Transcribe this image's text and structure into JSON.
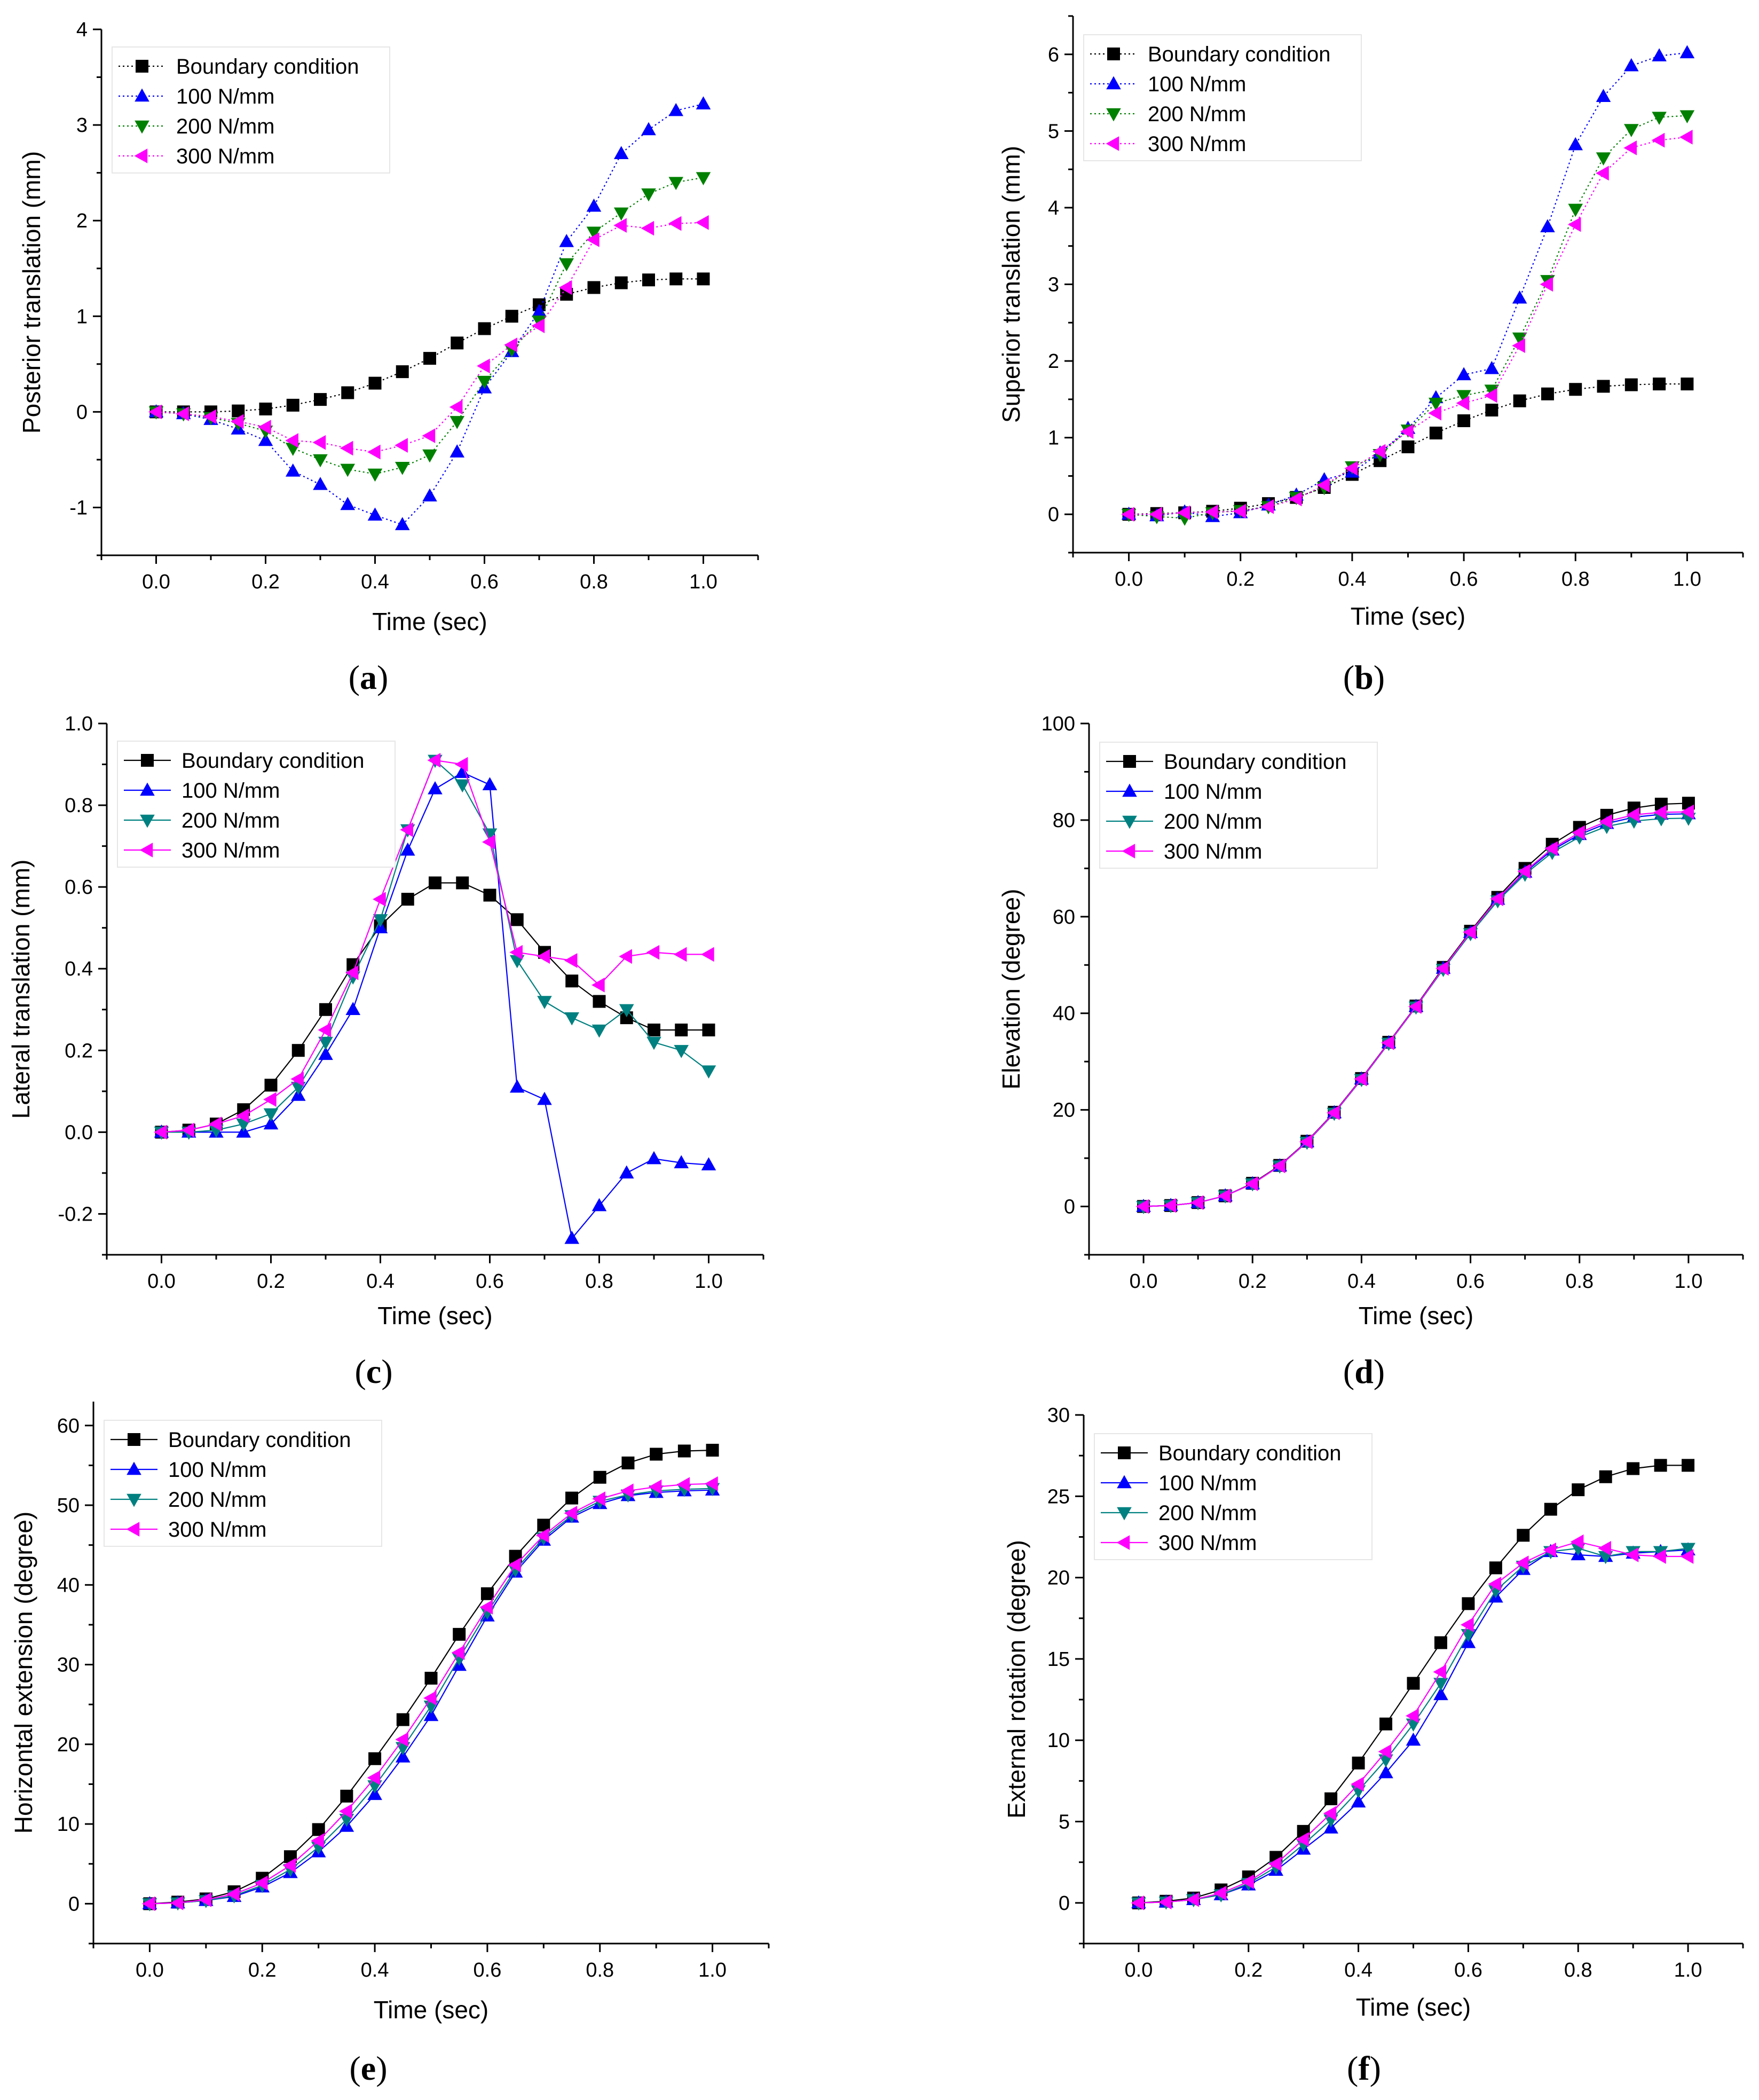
{
  "chart_data": [
    {
      "type": "line",
      "panel_label": "a",
      "xlabel": "Time (sec)",
      "ylabel": "Posterior translation (mm)",
      "xlim": [
        -0.1,
        1.1
      ],
      "ylim": [
        -1.5,
        4
      ],
      "xticks": [
        0.0,
        0.2,
        0.4,
        0.6,
        0.8,
        1.0
      ],
      "xtick_labels": [
        "0.0",
        "0.2",
        "0.4",
        "0.6",
        "0.8",
        "1.0"
      ],
      "yticks": [
        -1,
        0,
        1,
        2,
        3,
        4
      ],
      "ytick_labels": [
        "-1",
        "0",
        "1",
        "2",
        "3",
        "4"
      ],
      "grid": false,
      "legend_position": "top-left",
      "x": [
        0,
        0.05,
        0.1,
        0.15,
        0.2,
        0.25,
        0.3,
        0.35,
        0.4,
        0.45,
        0.5,
        0.55,
        0.6,
        0.65,
        0.7,
        0.75,
        0.8,
        0.85,
        0.9,
        0.95,
        1.0
      ],
      "series": [
        {
          "name": "Boundary condition",
          "marker": "square",
          "color": "#000000",
          "line": "dotted",
          "values": [
            0,
            0,
            0,
            0.01,
            0.03,
            0.07,
            0.13,
            0.2,
            0.3,
            0.42,
            0.56,
            0.72,
            0.87,
            1.0,
            1.12,
            1.23,
            1.3,
            1.35,
            1.38,
            1.39,
            1.39
          ]
        },
        {
          "name": "100 N/mm",
          "marker": "triangle-up",
          "color": "#0000ff",
          "line": "dotted",
          "values": [
            0,
            -0.02,
            -0.08,
            -0.18,
            -0.3,
            -0.62,
            -0.76,
            -0.97,
            -1.08,
            -1.18,
            -0.88,
            -0.42,
            0.25,
            0.63,
            1.05,
            1.78,
            2.15,
            2.7,
            2.95,
            3.15,
            3.22
          ]
        },
        {
          "name": "200 N/mm",
          "marker": "triangle-down",
          "color": "#008000",
          "line": "dotted",
          "values": [
            0,
            -0.02,
            -0.06,
            -0.12,
            -0.2,
            -0.38,
            -0.5,
            -0.6,
            -0.65,
            -0.58,
            -0.45,
            -0.1,
            0.32,
            0.65,
            0.95,
            1.55,
            1.88,
            2.08,
            2.28,
            2.4,
            2.45
          ]
        },
        {
          "name": "300 N/mm",
          "marker": "triangle-left",
          "color": "#ff00ff",
          "line": "dotted",
          "values": [
            0,
            -0.02,
            -0.05,
            -0.1,
            -0.16,
            -0.3,
            -0.32,
            -0.38,
            -0.42,
            -0.35,
            -0.25,
            0.05,
            0.48,
            0.7,
            0.9,
            1.3,
            1.8,
            1.95,
            1.92,
            1.97,
            1.98
          ]
        }
      ]
    },
    {
      "type": "line",
      "panel_label": "b",
      "xlabel": "Time (sec)",
      "ylabel": "Superior translation (mm)",
      "xlim": [
        -0.1,
        1.1
      ],
      "ylim": [
        -0.5,
        6.5
      ],
      "xticks": [
        0.0,
        0.2,
        0.4,
        0.6,
        0.8,
        1.0
      ],
      "xtick_labels": [
        "0.0",
        "0.2",
        "0.4",
        "0.6",
        "0.8",
        "1.0"
      ],
      "yticks": [
        0,
        1,
        2,
        3,
        4,
        5,
        6
      ],
      "ytick_labels": [
        "0",
        "1",
        "2",
        "3",
        "4",
        "5",
        "6"
      ],
      "grid": false,
      "legend_position": "top-left",
      "x": [
        0,
        0.05,
        0.1,
        0.15,
        0.2,
        0.25,
        0.3,
        0.35,
        0.4,
        0.45,
        0.5,
        0.55,
        0.6,
        0.65,
        0.7,
        0.75,
        0.8,
        0.85,
        0.9,
        0.95,
        1.0
      ],
      "series": [
        {
          "name": "Boundary condition",
          "marker": "square",
          "color": "#000000",
          "line": "dotted",
          "values": [
            0,
            0.01,
            0.02,
            0.04,
            0.08,
            0.14,
            0.22,
            0.35,
            0.52,
            0.7,
            0.88,
            1.06,
            1.22,
            1.36,
            1.48,
            1.57,
            1.63,
            1.67,
            1.69,
            1.7,
            1.7
          ]
        },
        {
          "name": "100 N/mm",
          "marker": "triangle-up",
          "color": "#0000ff",
          "line": "dotted",
          "values": [
            0,
            -0.02,
            0.03,
            -0.03,
            0.02,
            0.12,
            0.25,
            0.45,
            0.55,
            0.8,
            1.12,
            1.52,
            1.82,
            1.9,
            2.82,
            3.75,
            4.82,
            5.45,
            5.85,
            5.98,
            6.02
          ]
        },
        {
          "name": "200 N/mm",
          "marker": "triangle-down",
          "color": "#008000",
          "line": "dotted",
          "values": [
            0,
            -0.03,
            -0.05,
            0.02,
            0.05,
            0.1,
            0.22,
            0.35,
            0.62,
            0.78,
            1.1,
            1.45,
            1.55,
            1.62,
            2.3,
            3.05,
            3.98,
            4.65,
            5.02,
            5.18,
            5.2
          ]
        },
        {
          "name": "300 N/mm",
          "marker": "triangle-left",
          "color": "#ff00ff",
          "line": "dotted",
          "values": [
            0,
            0,
            0.02,
            0.03,
            0.04,
            0.1,
            0.2,
            0.38,
            0.6,
            0.82,
            1.08,
            1.32,
            1.45,
            1.55,
            2.2,
            3.0,
            3.78,
            4.45,
            4.78,
            4.88,
            4.92
          ]
        }
      ]
    },
    {
      "type": "line",
      "panel_label": "c",
      "xlabel": "Time (sec)",
      "ylabel": "Lateral translation (mm)",
      "xlim": [
        -0.1,
        1.1
      ],
      "ylim": [
        -0.3,
        1.0
      ],
      "xticks": [
        0.0,
        0.2,
        0.4,
        0.6,
        0.8,
        1.0
      ],
      "xtick_labels": [
        "0.0",
        "0.2",
        "0.4",
        "0.6",
        "0.8",
        "1.0"
      ],
      "yticks": [
        -0.2,
        0.0,
        0.2,
        0.4,
        0.6,
        0.8,
        1.0
      ],
      "ytick_labels": [
        "-0.2",
        "0.0",
        "0.2",
        "0.4",
        "0.6",
        "0.8",
        "1.0"
      ],
      "grid": false,
      "legend_position": "top-left",
      "x": [
        0,
        0.05,
        0.1,
        0.15,
        0.2,
        0.25,
        0.3,
        0.35,
        0.4,
        0.45,
        0.5,
        0.55,
        0.6,
        0.65,
        0.7,
        0.75,
        0.8,
        0.85,
        0.9,
        0.95,
        1.0
      ],
      "series": [
        {
          "name": "Boundary condition",
          "marker": "square",
          "color": "#000000",
          "line": "solid",
          "values": [
            0,
            0.005,
            0.02,
            0.055,
            0.115,
            0.2,
            0.3,
            0.41,
            0.505,
            0.57,
            0.61,
            0.61,
            0.58,
            0.52,
            0.44,
            0.37,
            0.32,
            0.28,
            0.25,
            0.25,
            0.25
          ]
        },
        {
          "name": "100 N/mm",
          "marker": "triangle-up",
          "color": "#0000ff",
          "line": "solid",
          "values": [
            0,
            0,
            0,
            0,
            0.02,
            0.09,
            0.19,
            0.3,
            0.5,
            0.69,
            0.84,
            0.88,
            0.85,
            0.11,
            0.08,
            -0.26,
            -0.18,
            -0.1,
            -0.065,
            -0.075,
            -0.08
          ]
        },
        {
          "name": "200 N/mm",
          "marker": "triangle-down",
          "color": "#008080",
          "line": "solid",
          "values": [
            0,
            0,
            0.005,
            0.02,
            0.045,
            0.11,
            0.22,
            0.38,
            0.52,
            0.74,
            0.91,
            0.85,
            0.73,
            0.42,
            0.32,
            0.28,
            0.25,
            0.3,
            0.22,
            0.2,
            0.15
          ]
        },
        {
          "name": "300 N/mm",
          "marker": "triangle-left",
          "color": "#ff00ff",
          "line": "solid",
          "values": [
            0,
            0.005,
            0.02,
            0.04,
            0.08,
            0.13,
            0.25,
            0.39,
            0.57,
            0.74,
            0.91,
            0.9,
            0.71,
            0.44,
            0.43,
            0.42,
            0.36,
            0.43,
            0.44,
            0.435,
            0.435
          ]
        }
      ]
    },
    {
      "type": "line",
      "panel_label": "d",
      "xlabel": "Time (sec)",
      "ylabel": "Elevation (degree)",
      "xlim": [
        -0.1,
        1.1
      ],
      "ylim": [
        -10,
        100
      ],
      "xticks": [
        0.0,
        0.2,
        0.4,
        0.6,
        0.8,
        1.0
      ],
      "xtick_labels": [
        "0.0",
        "0.2",
        "0.4",
        "0.6",
        "0.8",
        "1.0"
      ],
      "yticks": [
        0,
        20,
        40,
        60,
        80,
        100
      ],
      "ytick_labels": [
        "0",
        "20",
        "40",
        "60",
        "80",
        "100"
      ],
      "grid": false,
      "legend_position": "top-left",
      "x": [
        0,
        0.05,
        0.1,
        0.15,
        0.2,
        0.25,
        0.3,
        0.35,
        0.4,
        0.45,
        0.5,
        0.55,
        0.6,
        0.65,
        0.7,
        0.75,
        0.8,
        0.85,
        0.9,
        0.95,
        1.0
      ],
      "series": [
        {
          "name": "Boundary condition",
          "marker": "square",
          "color": "#000000",
          "line": "solid",
          "values": [
            0,
            0.2,
            0.8,
            2.2,
            4.8,
            8.5,
            13.5,
            19.5,
            26.5,
            34,
            41.5,
            49.5,
            57,
            64,
            70,
            75,
            78.5,
            81,
            82.5,
            83.3,
            83.5
          ]
        },
        {
          "name": "100 N/mm",
          "marker": "triangle-up",
          "color": "#0000ff",
          "line": "solid",
          "values": [
            0,
            0.2,
            0.8,
            2.2,
            4.7,
            8.4,
            13.4,
            19.4,
            26.4,
            33.9,
            41.4,
            49.3,
            56.7,
            63.6,
            69.2,
            73.8,
            77,
            79.3,
            80.6,
            81.2,
            81.3
          ]
        },
        {
          "name": "200 N/mm",
          "marker": "triangle-down",
          "color": "#008080",
          "line": "solid",
          "values": [
            0,
            0.2,
            0.8,
            2.2,
            4.7,
            8.4,
            13.3,
            19.3,
            26.3,
            33.8,
            41.3,
            49.1,
            56.5,
            63.3,
            68.8,
            73.3,
            76.5,
            78.7,
            79.8,
            80.3,
            80.4
          ]
        },
        {
          "name": "300 N/mm",
          "marker": "triangle-left",
          "color": "#ff00ff",
          "line": "solid",
          "values": [
            0,
            0.2,
            0.8,
            2.2,
            4.7,
            8.4,
            13.4,
            19.4,
            26.4,
            33.9,
            41.4,
            49.3,
            56.8,
            63.7,
            69.4,
            74.1,
            77.4,
            79.7,
            81.1,
            81.6,
            81.7
          ]
        }
      ]
    },
    {
      "type": "line",
      "panel_label": "e",
      "xlabel": "Time (sec)",
      "ylabel": "Horizontal extension (degree)",
      "xlim": [
        -0.1,
        1.1
      ],
      "ylim": [
        -5,
        63
      ],
      "xticks": [
        0.0,
        0.2,
        0.4,
        0.6,
        0.8,
        1.0
      ],
      "xtick_labels": [
        "0.0",
        "0.2",
        "0.4",
        "0.6",
        "0.8",
        "1.0"
      ],
      "yticks": [
        0,
        10,
        20,
        30,
        40,
        50,
        60
      ],
      "ytick_labels": [
        "0",
        "10",
        "20",
        "30",
        "40",
        "50",
        "60"
      ],
      "grid": false,
      "legend_position": "top-left",
      "x": [
        0,
        0.05,
        0.1,
        0.15,
        0.2,
        0.25,
        0.3,
        0.35,
        0.4,
        0.45,
        0.5,
        0.55,
        0.6,
        0.65,
        0.7,
        0.75,
        0.8,
        0.85,
        0.9,
        0.95,
        1.0
      ],
      "series": [
        {
          "name": "Boundary condition",
          "marker": "square",
          "color": "#000000",
          "line": "solid",
          "values": [
            0,
            0.2,
            0.6,
            1.5,
            3.2,
            5.9,
            9.3,
            13.5,
            18.2,
            23.1,
            28.3,
            33.8,
            38.9,
            43.6,
            47.5,
            50.9,
            53.5,
            55.3,
            56.4,
            56.8,
            56.9
          ]
        },
        {
          "name": "100 N/mm",
          "marker": "triangle-up",
          "color": "#0000ff",
          "line": "solid",
          "values": [
            0,
            0.1,
            0.4,
            0.9,
            2.1,
            3.9,
            6.5,
            9.7,
            13.7,
            18.4,
            23.6,
            29.9,
            36.1,
            41.6,
            45.6,
            48.5,
            50.2,
            51.2,
            51.6,
            51.8,
            51.9
          ]
        },
        {
          "name": "200 N/mm",
          "marker": "triangle-down",
          "color": "#008080",
          "line": "solid",
          "values": [
            0,
            0.1,
            0.4,
            1.0,
            2.3,
            4.3,
            7.1,
            10.6,
            14.8,
            19.6,
            24.8,
            30.8,
            36.6,
            41.9,
            45.9,
            48.7,
            50.5,
            51.3,
            51.8,
            52.0,
            52.1
          ]
        },
        {
          "name": "300 N/mm",
          "marker": "triangle-left",
          "color": "#ff00ff",
          "line": "solid",
          "values": [
            0,
            0.1,
            0.5,
            1.2,
            2.6,
            4.8,
            7.9,
            11.6,
            15.8,
            20.6,
            25.8,
            31.5,
            37.2,
            42.5,
            46.2,
            49.0,
            50.8,
            51.8,
            52.3,
            52.6,
            52.7
          ]
        }
      ]
    },
    {
      "type": "line",
      "panel_label": "f",
      "xlabel": "Time (sec)",
      "ylabel": "External rotation (degree)",
      "xlim": [
        -0.1,
        1.1
      ],
      "ylim": [
        -2.5,
        30
      ],
      "xticks": [
        0.0,
        0.2,
        0.4,
        0.6,
        0.8,
        1.0
      ],
      "xtick_labels": [
        "0.0",
        "0.2",
        "0.4",
        "0.6",
        "0.8",
        "1.0"
      ],
      "yticks": [
        0,
        5,
        10,
        15,
        20,
        25,
        30
      ],
      "ytick_labels": [
        "0",
        "5",
        "10",
        "15",
        "20",
        "25",
        "30"
      ],
      "grid": false,
      "legend_position": "top-left",
      "x": [
        0,
        0.05,
        0.1,
        0.15,
        0.2,
        0.25,
        0.3,
        0.35,
        0.4,
        0.45,
        0.5,
        0.55,
        0.6,
        0.65,
        0.7,
        0.75,
        0.8,
        0.85,
        0.9,
        0.95,
        1.0
      ],
      "series": [
        {
          "name": "Boundary condition",
          "marker": "square",
          "color": "#000000",
          "line": "solid",
          "values": [
            0,
            0.1,
            0.3,
            0.8,
            1.6,
            2.8,
            4.4,
            6.4,
            8.6,
            11.0,
            13.5,
            16.0,
            18.4,
            20.6,
            22.6,
            24.2,
            25.4,
            26.2,
            26.7,
            26.9,
            26.9
          ]
        },
        {
          "name": "100 N/mm",
          "marker": "triangle-up",
          "color": "#0000ff",
          "line": "solid",
          "values": [
            0,
            0.05,
            0.2,
            0.5,
            1.1,
            2.0,
            3.3,
            4.6,
            6.2,
            8.0,
            10.0,
            12.8,
            16.0,
            18.8,
            20.5,
            21.6,
            21.4,
            21.3,
            21.5,
            21.6,
            21.7
          ]
        },
        {
          "name": "200 N/mm",
          "marker": "triangle-down",
          "color": "#008080",
          "line": "solid",
          "values": [
            0,
            0.05,
            0.2,
            0.5,
            1.2,
            2.2,
            3.6,
            5.1,
            6.9,
            8.8,
            11.0,
            13.5,
            16.5,
            19.2,
            20.7,
            21.6,
            21.8,
            21.3,
            21.6,
            21.6,
            21.8
          ]
        },
        {
          "name": "300 N/mm",
          "marker": "triangle-left",
          "color": "#ff00ff",
          "line": "solid",
          "values": [
            0,
            0.05,
            0.2,
            0.6,
            1.3,
            2.4,
            3.9,
            5.5,
            7.3,
            9.3,
            11.5,
            14.2,
            17.1,
            19.6,
            20.9,
            21.7,
            22.2,
            21.8,
            21.4,
            21.3,
            21.3
          ]
        }
      ]
    }
  ]
}
